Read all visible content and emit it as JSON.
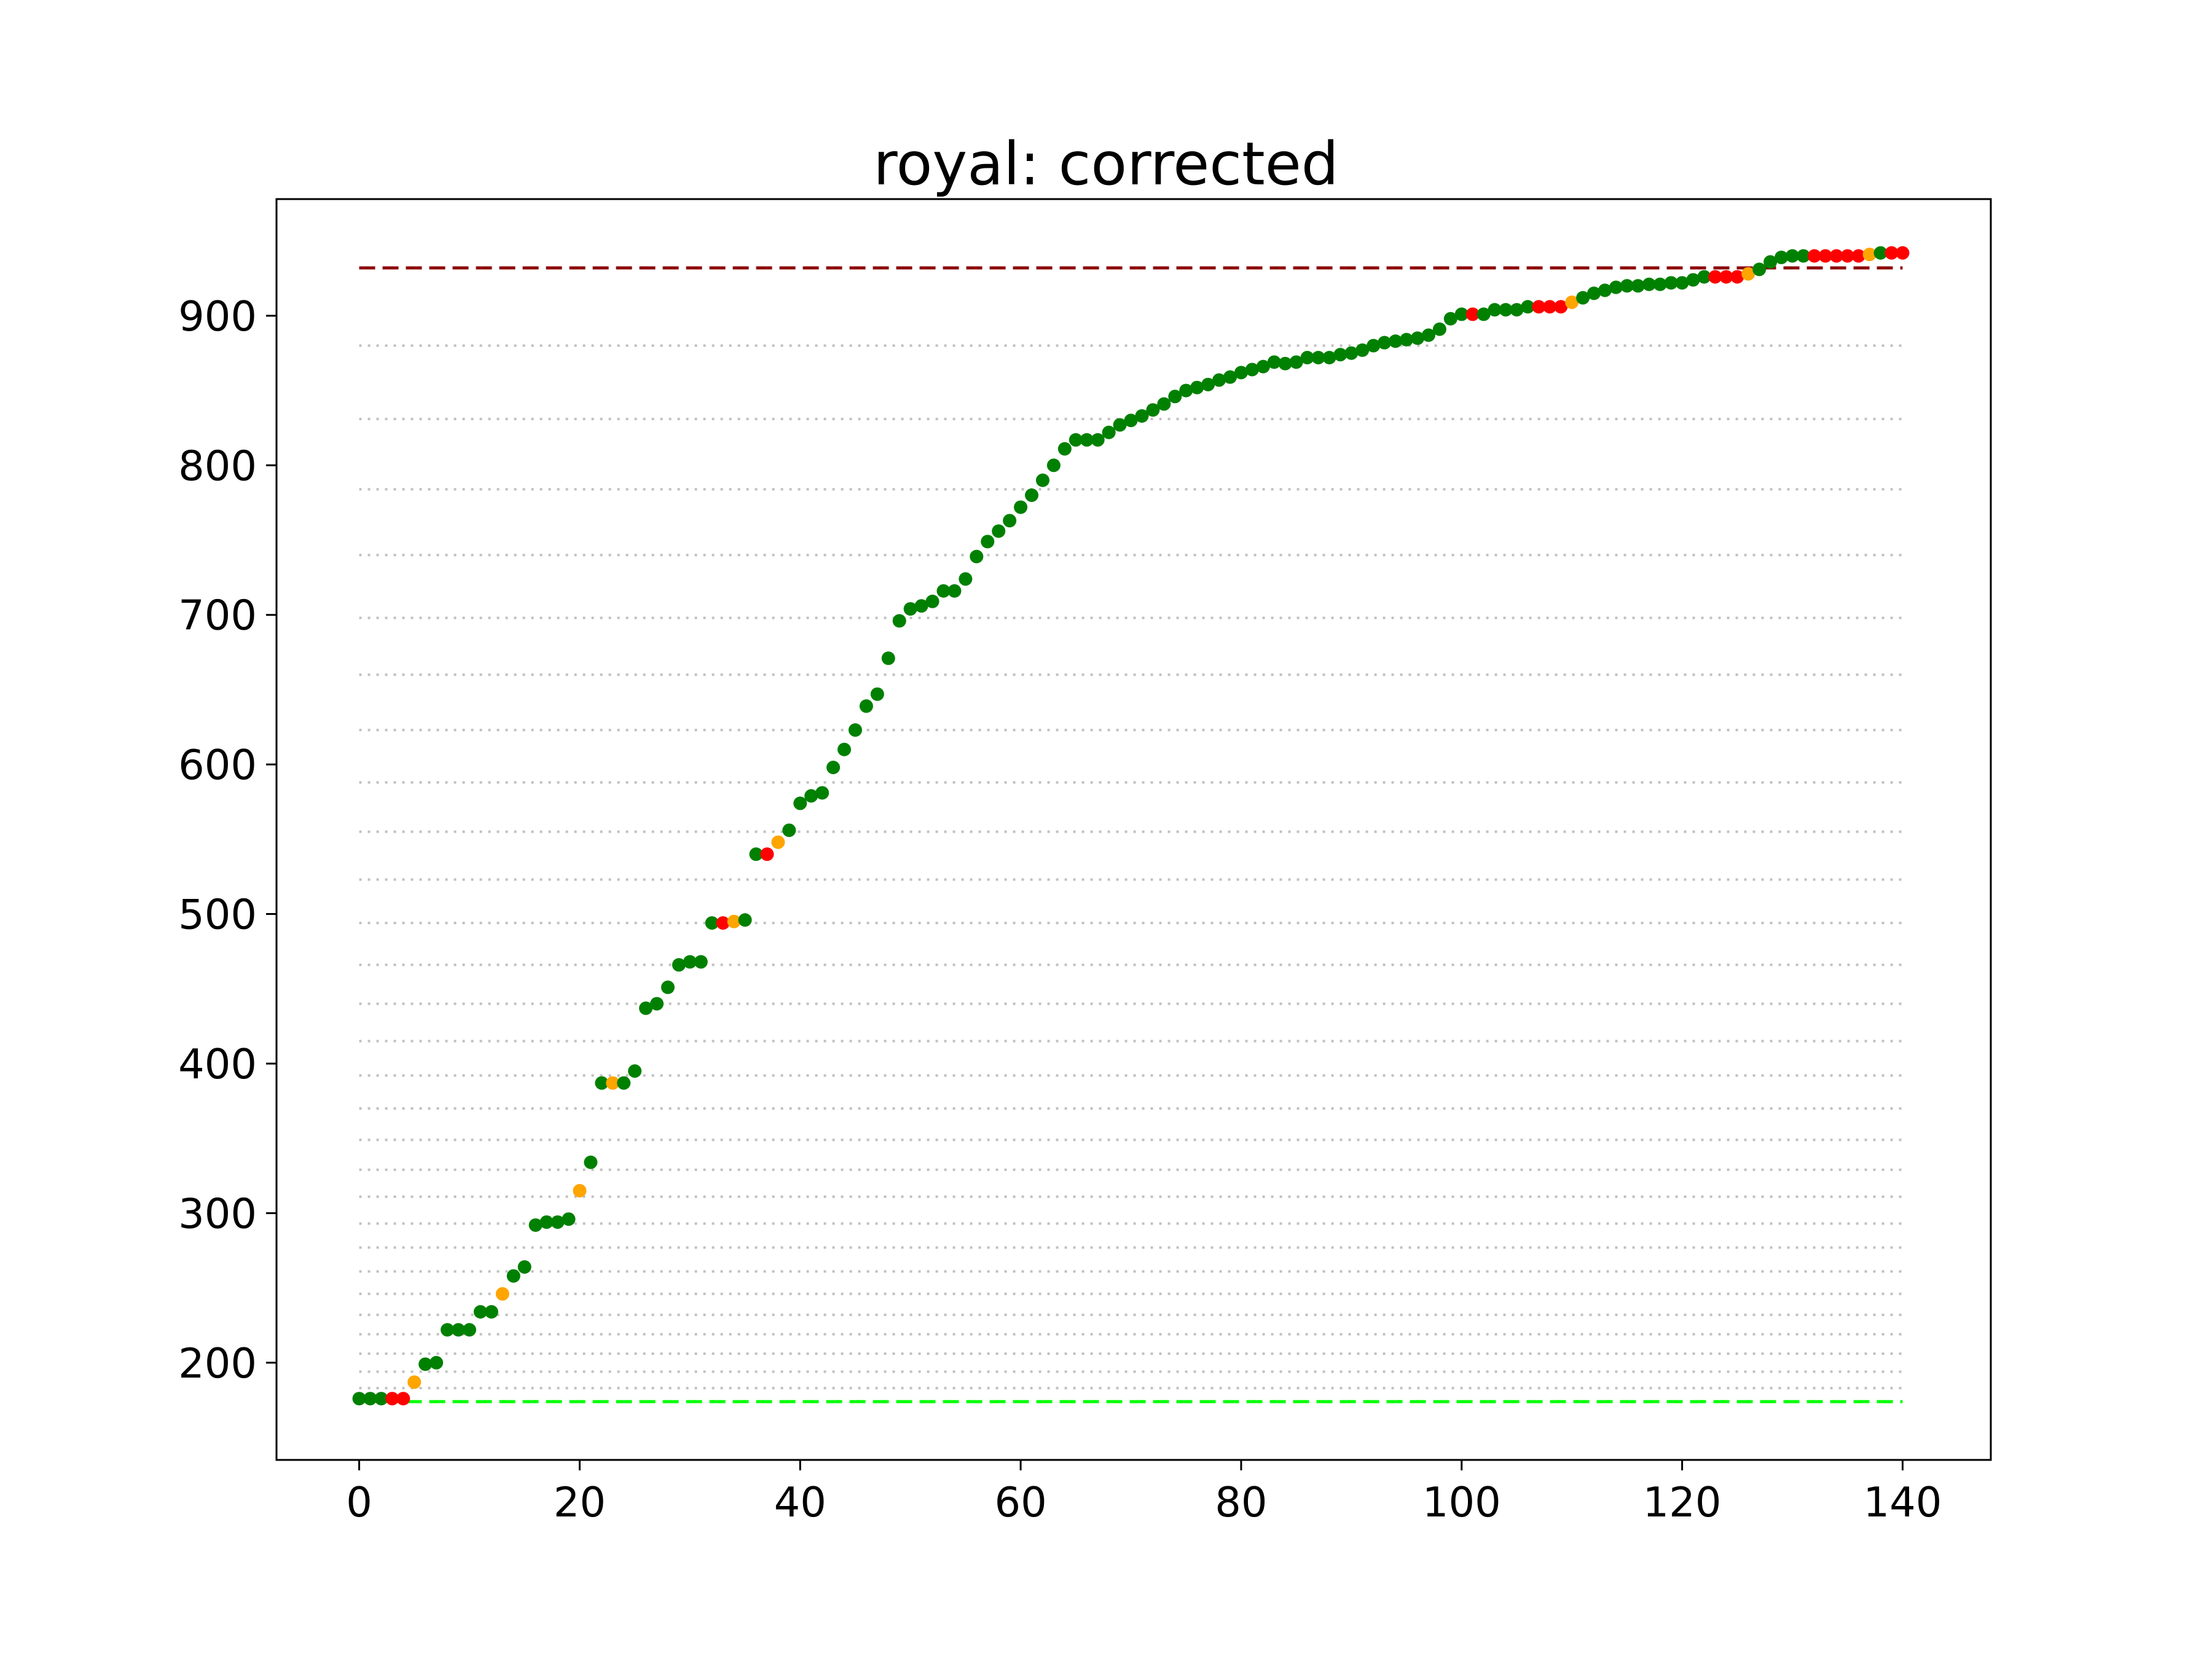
{
  "chart_data": {
    "type": "scatter",
    "title": "royal: corrected",
    "xlabel": "",
    "ylabel": "",
    "xlim": [
      -7.5,
      148
    ],
    "ylim": [
      135,
      978
    ],
    "x_ticks": [
      "0",
      "20",
      "40",
      "60",
      "80",
      "100",
      "120",
      "140"
    ],
    "y_ticks": [
      "200",
      "300",
      "400",
      "500",
      "600",
      "700",
      "800",
      "900"
    ],
    "grid": false,
    "legend": "none",
    "colors": {
      "ok": "#008000",
      "warn": "#ffa500",
      "bad": "#ff0000",
      "upper_line": "#8b0000",
      "lower_line": "#00ff00",
      "guide": "#c0c0c0"
    },
    "reference_lines": [
      {
        "y": 932,
        "color": "#8b0000",
        "style": "dashed"
      },
      {
        "y": 174,
        "color": "#00ff00",
        "style": "dashed"
      }
    ],
    "guide_lines": [
      880,
      831,
      784,
      740,
      698,
      660,
      623,
      588,
      555,
      523,
      494,
      466,
      440,
      415,
      392,
      370,
      349,
      329,
      311,
      293,
      277,
      261,
      246,
      232,
      219,
      206,
      194,
      183
    ],
    "points": [
      [
        0,
        176,
        "ok"
      ],
      [
        1,
        176,
        "ok"
      ],
      [
        2,
        176,
        "ok"
      ],
      [
        3,
        176,
        "bad"
      ],
      [
        4,
        176,
        "bad"
      ],
      [
        5,
        187,
        "warn"
      ],
      [
        6,
        199,
        "ok"
      ],
      [
        7,
        200,
        "ok"
      ],
      [
        8,
        222,
        "ok"
      ],
      [
        9,
        222,
        "ok"
      ],
      [
        10,
        222,
        "ok"
      ],
      [
        11,
        234,
        "ok"
      ],
      [
        12,
        234,
        "ok"
      ],
      [
        13,
        246,
        "warn"
      ],
      [
        14,
        258,
        "ok"
      ],
      [
        15,
        264,
        "ok"
      ],
      [
        16,
        292,
        "ok"
      ],
      [
        17,
        294,
        "ok"
      ],
      [
        18,
        294,
        "ok"
      ],
      [
        19,
        296,
        "ok"
      ],
      [
        20,
        315,
        "warn"
      ],
      [
        21,
        334,
        "ok"
      ],
      [
        22,
        387,
        "ok"
      ],
      [
        23,
        387,
        "warn"
      ],
      [
        24,
        387,
        "ok"
      ],
      [
        25,
        395,
        "ok"
      ],
      [
        26,
        437,
        "ok"
      ],
      [
        27,
        440,
        "ok"
      ],
      [
        28,
        451,
        "ok"
      ],
      [
        29,
        466,
        "ok"
      ],
      [
        30,
        468,
        "ok"
      ],
      [
        31,
        468,
        "ok"
      ],
      [
        32,
        494,
        "ok"
      ],
      [
        33,
        494,
        "bad"
      ],
      [
        34,
        495,
        "warn"
      ],
      [
        35,
        496,
        "ok"
      ],
      [
        36,
        540,
        "ok"
      ],
      [
        37,
        540,
        "bad"
      ],
      [
        38,
        548,
        "warn"
      ],
      [
        39,
        556,
        "ok"
      ],
      [
        40,
        574,
        "ok"
      ],
      [
        41,
        579,
        "ok"
      ],
      [
        42,
        581,
        "ok"
      ],
      [
        43,
        598,
        "ok"
      ],
      [
        44,
        610,
        "ok"
      ],
      [
        45,
        623,
        "ok"
      ],
      [
        46,
        639,
        "ok"
      ],
      [
        47,
        647,
        "ok"
      ],
      [
        48,
        671,
        "ok"
      ],
      [
        49,
        696,
        "ok"
      ],
      [
        50,
        704,
        "ok"
      ],
      [
        51,
        706,
        "ok"
      ],
      [
        52,
        709,
        "ok"
      ],
      [
        53,
        716,
        "ok"
      ],
      [
        54,
        716,
        "ok"
      ],
      [
        55,
        724,
        "ok"
      ],
      [
        56,
        739,
        "ok"
      ],
      [
        57,
        749,
        "ok"
      ],
      [
        58,
        756,
        "ok"
      ],
      [
        59,
        763,
        "ok"
      ],
      [
        60,
        772,
        "ok"
      ],
      [
        61,
        780,
        "ok"
      ],
      [
        62,
        790,
        "ok"
      ],
      [
        63,
        800,
        "ok"
      ],
      [
        64,
        811,
        "ok"
      ],
      [
        65,
        817,
        "ok"
      ],
      [
        66,
        817,
        "ok"
      ],
      [
        67,
        817,
        "ok"
      ],
      [
        68,
        822,
        "ok"
      ],
      [
        69,
        827,
        "ok"
      ],
      [
        70,
        830,
        "ok"
      ],
      [
        71,
        833,
        "ok"
      ],
      [
        72,
        837,
        "ok"
      ],
      [
        73,
        841,
        "ok"
      ],
      [
        74,
        846,
        "ok"
      ],
      [
        75,
        850,
        "ok"
      ],
      [
        76,
        852,
        "ok"
      ],
      [
        77,
        854,
        "ok"
      ],
      [
        78,
        857,
        "ok"
      ],
      [
        79,
        859,
        "ok"
      ],
      [
        80,
        862,
        "ok"
      ],
      [
        81,
        864,
        "ok"
      ],
      [
        82,
        866,
        "ok"
      ],
      [
        83,
        869,
        "ok"
      ],
      [
        84,
        868,
        "ok"
      ],
      [
        85,
        869,
        "ok"
      ],
      [
        86,
        872,
        "ok"
      ],
      [
        87,
        872,
        "ok"
      ],
      [
        88,
        872,
        "ok"
      ],
      [
        89,
        874,
        "ok"
      ],
      [
        90,
        875,
        "ok"
      ],
      [
        91,
        877,
        "ok"
      ],
      [
        92,
        880,
        "ok"
      ],
      [
        93,
        882,
        "ok"
      ],
      [
        94,
        883,
        "ok"
      ],
      [
        95,
        884,
        "ok"
      ],
      [
        96,
        885,
        "ok"
      ],
      [
        97,
        887,
        "ok"
      ],
      [
        98,
        891,
        "ok"
      ],
      [
        99,
        898,
        "ok"
      ],
      [
        100,
        901,
        "ok"
      ],
      [
        101,
        901,
        "bad"
      ],
      [
        102,
        901,
        "ok"
      ],
      [
        103,
        904,
        "ok"
      ],
      [
        104,
        904,
        "ok"
      ],
      [
        105,
        904,
        "ok"
      ],
      [
        106,
        906,
        "ok"
      ],
      [
        107,
        906,
        "bad"
      ],
      [
        108,
        906,
        "bad"
      ],
      [
        109,
        906,
        "bad"
      ],
      [
        110,
        909,
        "warn"
      ],
      [
        111,
        912,
        "ok"
      ],
      [
        112,
        915,
        "ok"
      ],
      [
        113,
        917,
        "ok"
      ],
      [
        114,
        919,
        "ok"
      ],
      [
        115,
        920,
        "ok"
      ],
      [
        116,
        920,
        "ok"
      ],
      [
        117,
        921,
        "ok"
      ],
      [
        118,
        921,
        "ok"
      ],
      [
        119,
        922,
        "ok"
      ],
      [
        120,
        922,
        "ok"
      ],
      [
        121,
        924,
        "ok"
      ],
      [
        122,
        926,
        "ok"
      ],
      [
        123,
        926,
        "bad"
      ],
      [
        124,
        926,
        "bad"
      ],
      [
        125,
        926,
        "bad"
      ],
      [
        126,
        928,
        "warn"
      ],
      [
        127,
        931,
        "ok"
      ],
      [
        128,
        936,
        "ok"
      ],
      [
        129,
        939,
        "ok"
      ],
      [
        130,
        940,
        "ok"
      ],
      [
        131,
        940,
        "ok"
      ],
      [
        132,
        940,
        "bad"
      ],
      [
        133,
        940,
        "bad"
      ],
      [
        134,
        940,
        "bad"
      ],
      [
        135,
        940,
        "bad"
      ],
      [
        136,
        940,
        "bad"
      ],
      [
        137,
        941,
        "warn"
      ],
      [
        138,
        942,
        "ok"
      ],
      [
        139,
        942,
        "bad"
      ],
      [
        140,
        942,
        "bad"
      ]
    ]
  }
}
